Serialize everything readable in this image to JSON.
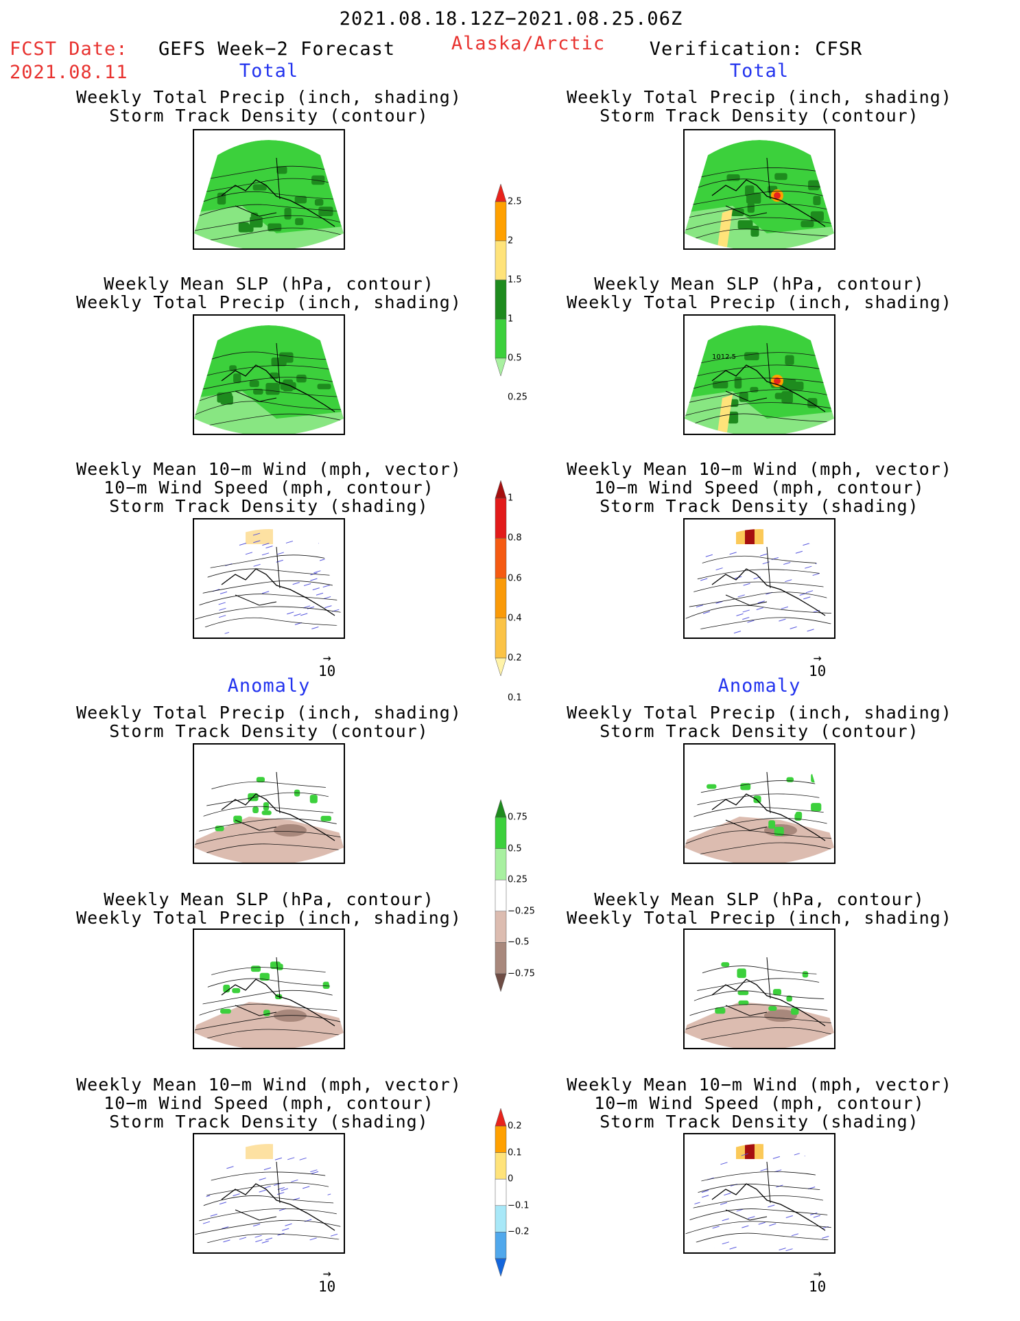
{
  "header": {
    "date_range": "2021.08.18.12Z−2021.08.25.06Z",
    "fcst_label": "FCST Date:",
    "fcst_date": "2021.08.11",
    "forecast_title": "GEFS Week−2 Forecast",
    "region": "Alaska/Arctic",
    "verification": "Verification: CFSR"
  },
  "sections": {
    "total": "Total",
    "anomaly": "Anomaly"
  },
  "panels": [
    {
      "id": "fc-total-precip",
      "lines": [
        "Weekly Total Precip (inch, shading)",
        "Storm Track Density (contour)"
      ],
      "type": "precip"
    },
    {
      "id": "fc-total-slp",
      "lines": [
        "Weekly Mean SLP (hPa, contour)",
        "Weekly Total Precip (inch, shading)"
      ],
      "type": "precip"
    },
    {
      "id": "fc-total-wind",
      "lines": [
        "Weekly Mean 10−m Wind (mph, vector)",
        "10−m Wind Speed (mph, contour)",
        "Storm Track Density (shading)"
      ],
      "type": "wind"
    },
    {
      "id": "fc-anom-precip",
      "lines": [
        "Weekly Total Precip (inch, shading)",
        "Storm Track Density (contour)"
      ],
      "type": "anom"
    },
    {
      "id": "fc-anom-slp",
      "lines": [
        "Weekly Mean SLP (hPa, contour)",
        "Weekly Total Precip (inch, shading)"
      ],
      "type": "anom"
    },
    {
      "id": "fc-anom-wind",
      "lines": [
        "Weekly Mean 10−m Wind (mph, vector)",
        "10−m Wind Speed (mph, contour)",
        "Storm Track Density (shading)"
      ],
      "type": "wind"
    },
    {
      "id": "ver-total-precip",
      "lines": [
        "Weekly Total Precip (inch, shading)",
        "Storm Track Density (contour)"
      ],
      "type": "precip"
    },
    {
      "id": "ver-total-slp",
      "lines": [
        "Weekly Mean SLP (hPa, contour)",
        "Weekly Total Precip (inch, shading)"
      ],
      "type": "precip",
      "annotation": "1012.5"
    },
    {
      "id": "ver-total-wind",
      "lines": [
        "Weekly Mean 10−m Wind (mph, vector)",
        "10−m Wind Speed (mph, contour)",
        "Storm Track Density (shading)"
      ],
      "type": "wind"
    },
    {
      "id": "ver-anom-precip",
      "lines": [
        "Weekly Total Precip (inch, shading)",
        "Storm Track Density (contour)"
      ],
      "type": "anom"
    },
    {
      "id": "ver-anom-slp",
      "lines": [
        "Weekly Mean SLP (hPa, contour)",
        "Weekly Total Precip (inch, shading)"
      ],
      "type": "anom"
    },
    {
      "id": "ver-anom-wind",
      "lines": [
        "Weekly Mean 10−m Wind (mph, vector)",
        "10−m Wind Speed (mph, contour)",
        "Storm Track Density (shading)"
      ],
      "type": "wind"
    }
  ],
  "vector_ref": "10",
  "colorbars": {
    "precip_total": {
      "labels": [
        "2.5",
        "2",
        "1.5",
        "1",
        "0.5",
        "0.25"
      ],
      "colors": [
        "#e8231c",
        "#ffa000",
        "#ffe37a",
        "#1e8b1e",
        "#3cd03c",
        "#a8f0a0"
      ]
    },
    "storm_total": {
      "labels": [
        "1",
        "0.8",
        "0.6",
        "0.4",
        "0.2",
        "0.1"
      ],
      "colors": [
        "#a50f0f",
        "#e21a1a",
        "#f55a12",
        "#fa9a08",
        "#fbc346",
        "#fff3a8"
      ]
    },
    "precip_anom": {
      "labels": [
        "0.75",
        "0.5",
        "0.25",
        "−0.25",
        "−0.5",
        "−0.75"
      ],
      "colors": [
        "#1e8b1e",
        "#3cd03c",
        "#a8f0a0",
        "#ffffff",
        "#dcbcb0",
        "#a8887c",
        "#6e4c44"
      ]
    },
    "storm_anom": {
      "labels": [
        "0.2",
        "0.1",
        "0",
        "−0.1",
        "−0.2"
      ],
      "colors": [
        "#e8231c",
        "#ffa000",
        "#ffe37a",
        "#ffffff",
        "#a8e8f8",
        "#50a8ec",
        "#1466dc"
      ]
    }
  },
  "colors": {
    "red_text": "#e8322f",
    "blue_text": "#2233ee",
    "land_green": "#3cd03c",
    "dark_green": "#1e8b1e",
    "light_green": "#a8f0a0",
    "anomaly_brown": "#dcbcb0",
    "vector_blue": "#5555dd"
  }
}
